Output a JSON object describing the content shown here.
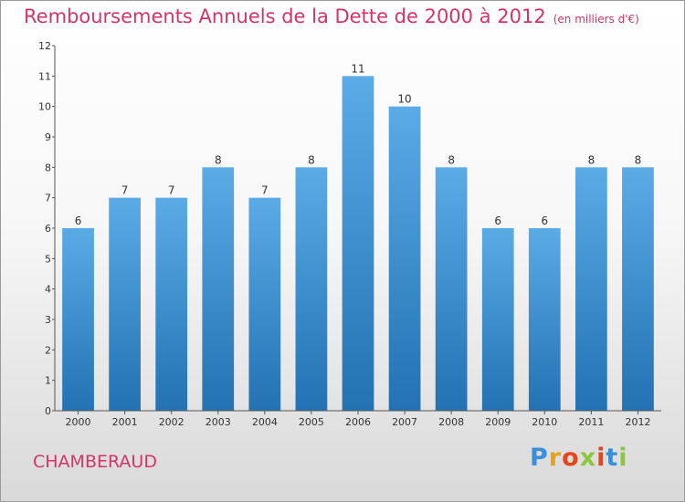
{
  "header": {
    "title": "Remboursements Annuels de la Dette de 2000 à 2012",
    "unit": "(en milliers d'€)"
  },
  "footer": {
    "commune": "CHAMBERAUD",
    "logo_text": "Proxiti",
    "logo_colors": [
      "#3a8fd8",
      "#e8a21a",
      "#e8441a",
      "#8cc63f",
      "#e8441a",
      "#3a8fd8",
      "#8cc63f"
    ]
  },
  "chart_data": {
    "type": "bar",
    "title": "Remboursements Annuels de la Dette de 2000 à 2012",
    "xlabel": "",
    "ylabel": "",
    "categories": [
      "2000",
      "2001",
      "2002",
      "2003",
      "2004",
      "2005",
      "2006",
      "2007",
      "2008",
      "2009",
      "2010",
      "2011",
      "2012"
    ],
    "values": [
      6,
      7,
      7,
      8,
      7,
      8,
      11,
      10,
      8,
      6,
      6,
      8,
      8
    ],
    "ylim": [
      0,
      12
    ],
    "yticks": [
      0,
      1,
      2,
      3,
      4,
      5,
      6,
      7,
      8,
      9,
      10,
      11,
      12
    ],
    "grid": false,
    "bar_color_top": "#5aabe6",
    "bar_color_bottom": "#2272b4"
  }
}
